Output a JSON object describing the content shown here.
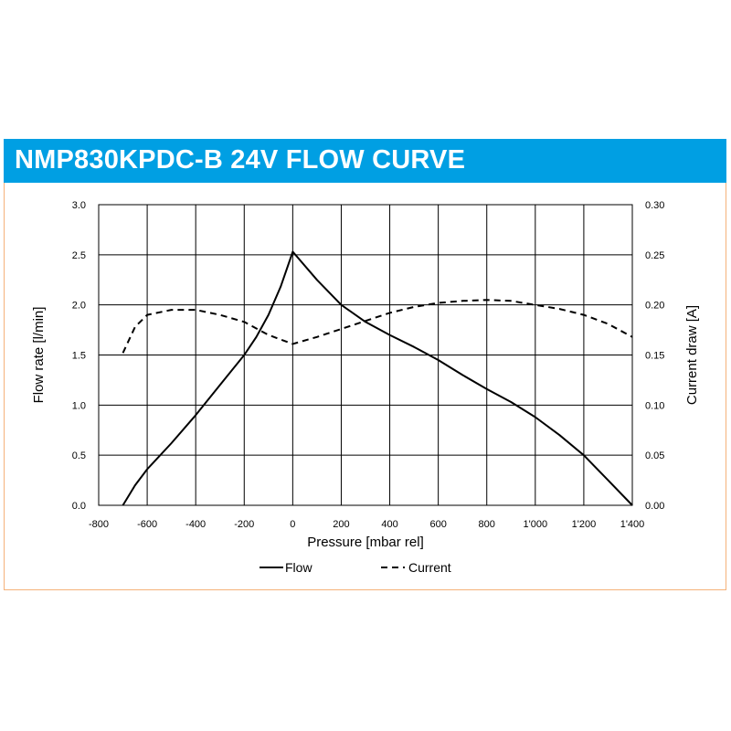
{
  "header": {
    "title": "NMP830KPDC-B 24V FLOW CURVE",
    "colors": {
      "banner": "#009fe3",
      "border": "#f5b27a",
      "title_text": "#ffffff"
    }
  },
  "chart_data": {
    "type": "line",
    "xlabel": "Pressure [mbar rel]",
    "ylabel": "Flow rate [l/min]",
    "y2label": "Current draw [A]",
    "xlim": [
      -800,
      1400
    ],
    "ylim": [
      0,
      3.0
    ],
    "y2lim": [
      0,
      0.3
    ],
    "x_ticks": [
      -800,
      -600,
      -400,
      -200,
      0,
      200,
      400,
      600,
      800,
      1000,
      1200,
      1400
    ],
    "x_tick_labels": [
      "-800",
      "-600",
      "-400",
      "-200",
      "0",
      "200",
      "400",
      "600",
      "800",
      "1'000",
      "1'200",
      "1'400"
    ],
    "y_ticks": [
      0,
      0.5,
      1.0,
      1.5,
      2.0,
      2.5,
      3.0
    ],
    "y_tick_labels": [
      "0.0",
      "0.5",
      "1.0",
      "1.5",
      "2.0",
      "2.5",
      "3.0"
    ],
    "y2_ticks": [
      0,
      0.05,
      0.1,
      0.15,
      0.2,
      0.25,
      0.3
    ],
    "y2_tick_labels": [
      "0.00",
      "0.05",
      "0.10",
      "0.15",
      "0.20",
      "0.25",
      "0.30"
    ],
    "grid": true,
    "legend_position": "bottom-center",
    "series": [
      {
        "name": "Flow",
        "axis": "left",
        "style": "solid",
        "x": [
          -700,
          -650,
          -600,
          -500,
          -400,
          -300,
          -200,
          -150,
          -100,
          -50,
          0,
          100,
          200,
          300,
          400,
          500,
          600,
          700,
          800,
          900,
          1000,
          1100,
          1200,
          1300,
          1400
        ],
        "y": [
          0.0,
          0.2,
          0.36,
          0.62,
          0.9,
          1.2,
          1.5,
          1.68,
          1.9,
          2.18,
          2.53,
          2.25,
          2.0,
          1.83,
          1.7,
          1.58,
          1.45,
          1.3,
          1.16,
          1.03,
          0.88,
          0.7,
          0.5,
          0.25,
          0.0
        ]
      },
      {
        "name": "Current",
        "axis": "right",
        "style": "dashed",
        "x": [
          -700,
          -650,
          -600,
          -500,
          -400,
          -300,
          -200,
          -100,
          0,
          100,
          200,
          300,
          400,
          500,
          600,
          700,
          800,
          900,
          1000,
          1100,
          1200,
          1300,
          1400
        ],
        "y": [
          0.152,
          0.178,
          0.19,
          0.195,
          0.195,
          0.19,
          0.183,
          0.17,
          0.161,
          0.168,
          0.176,
          0.184,
          0.192,
          0.198,
          0.202,
          0.204,
          0.205,
          0.204,
          0.2,
          0.196,
          0.19,
          0.181,
          0.168
        ]
      }
    ]
  }
}
